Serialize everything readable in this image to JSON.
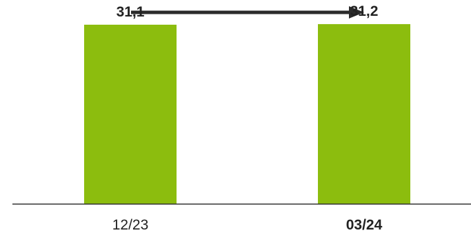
{
  "chart_data": {
    "type": "bar",
    "categories": [
      "12/23",
      "03/24"
    ],
    "values": [
      31.1,
      31.2
    ],
    "value_labels": [
      "31,1",
      "31,2"
    ],
    "title": "",
    "xlabel": "",
    "ylabel": "",
    "ylim": [
      0,
      33
    ],
    "grid": false,
    "legend": "none",
    "trend_arrow": "right",
    "highlight_category": "03/24",
    "colors": {
      "bar": "#8cbd0e",
      "highlight_label": "#8cbd0e",
      "text": "#222222",
      "axis": "#333333",
      "arrow": "#2b2b2b"
    }
  }
}
